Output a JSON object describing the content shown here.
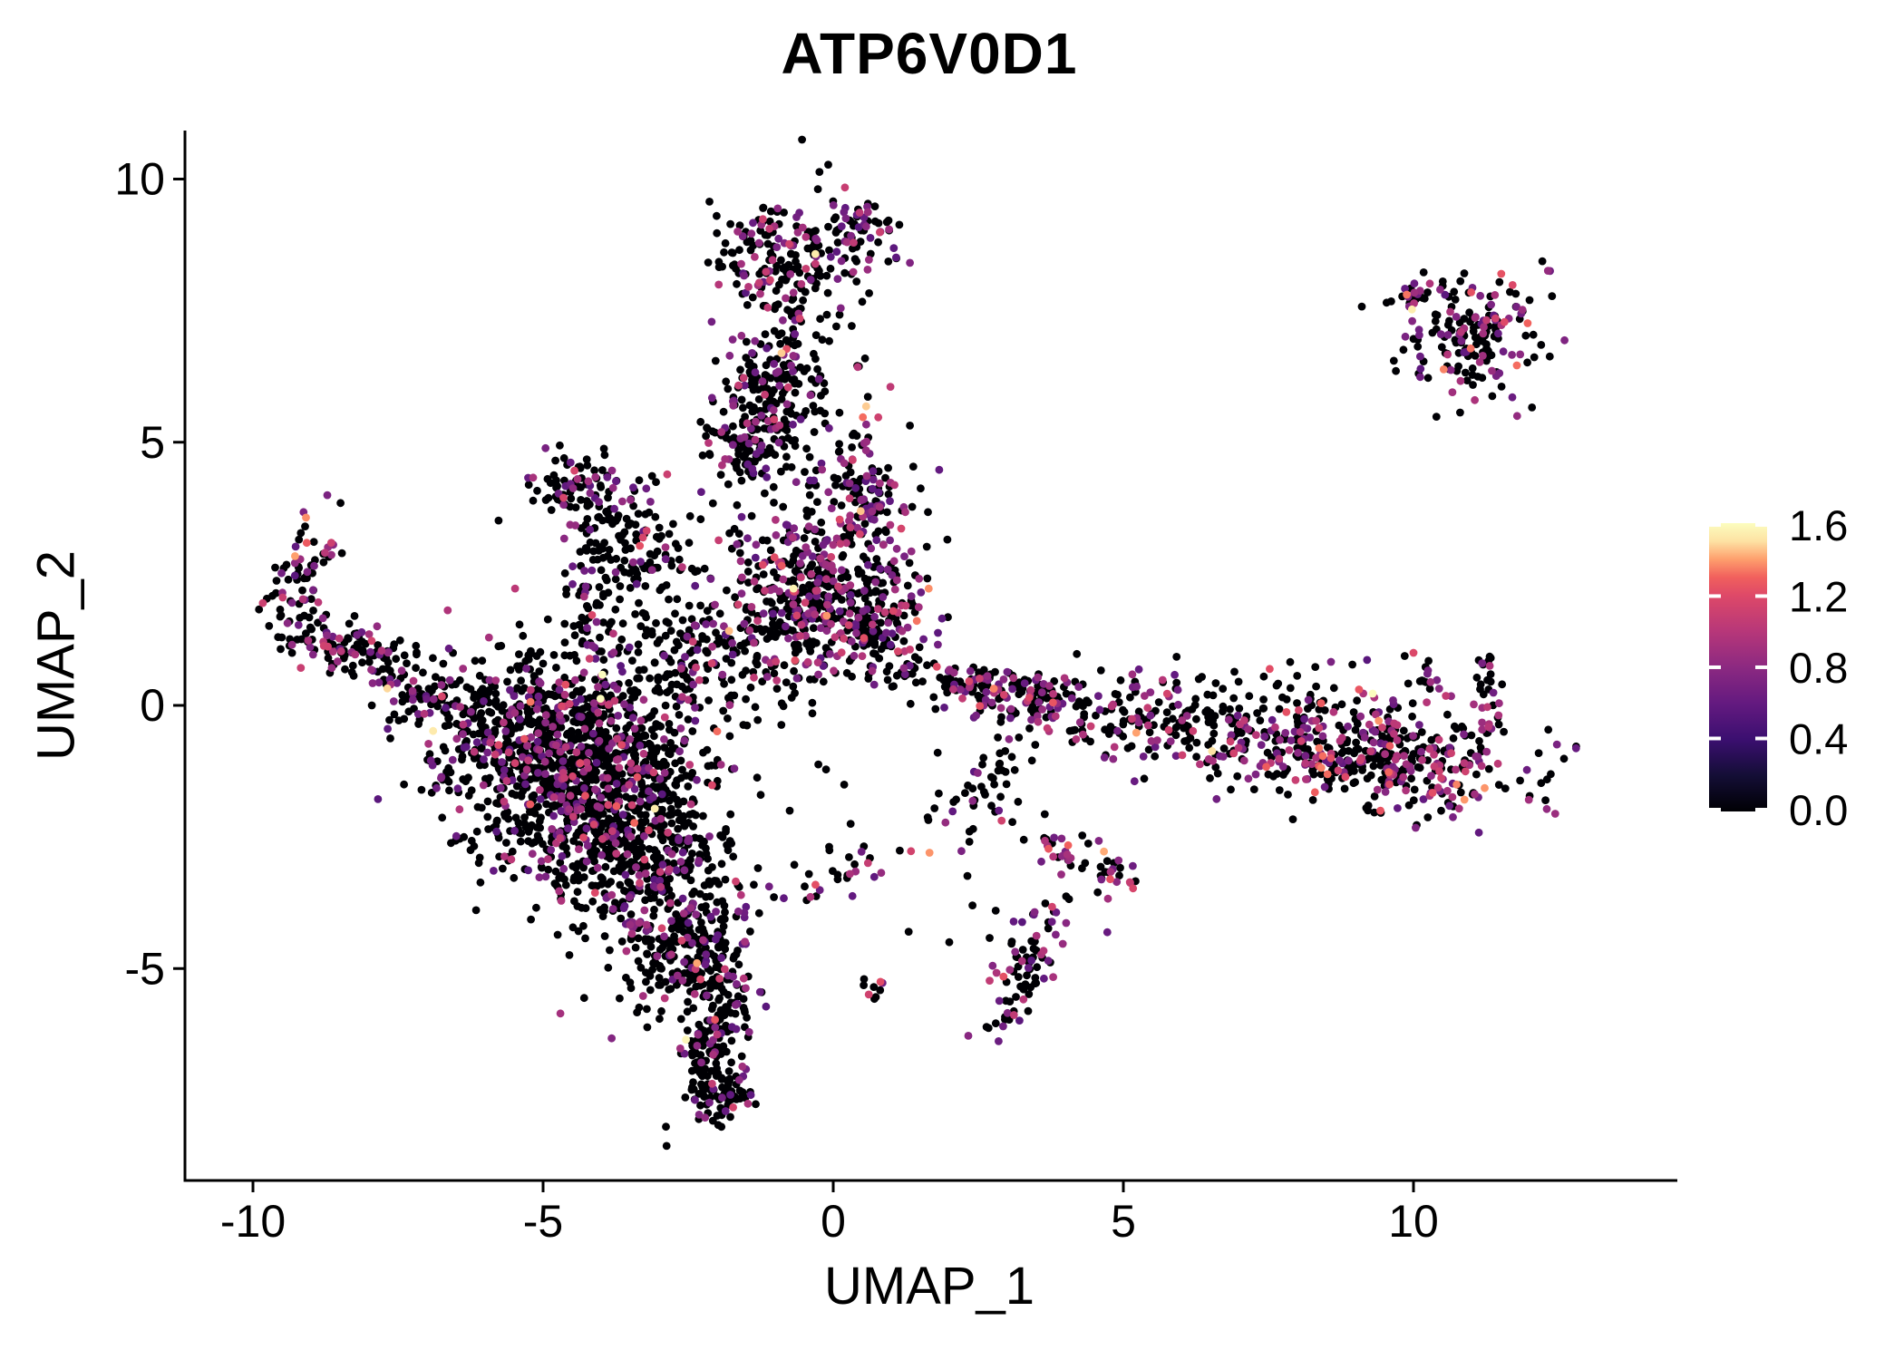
{
  "title": "ATP6V0D1",
  "axes": {
    "x_label": "UMAP_1",
    "y_label": "UMAP_2",
    "x_ticks": [
      -10,
      -5,
      0,
      5,
      10
    ],
    "y_ticks": [
      10,
      5,
      0,
      -5
    ]
  },
  "legend": {
    "ticks": [
      {
        "label": "1.6",
        "value": 1.6
      },
      {
        "label": "1.2",
        "value": 1.2
      },
      {
        "label": "0.8",
        "value": 0.8
      },
      {
        "label": "0.4",
        "value": 0.4
      },
      {
        "label": "0.0",
        "value": 0.0
      }
    ],
    "vmax": 1.62,
    "gradient": [
      {
        "o": 0.0,
        "c": "#000004"
      },
      {
        "o": 0.125,
        "c": "#140E36"
      },
      {
        "o": 0.25,
        "c": "#3B0F70"
      },
      {
        "o": 0.375,
        "c": "#641A80"
      },
      {
        "o": 0.5,
        "c": "#8C2981"
      },
      {
        "o": 0.625,
        "c": "#B73779"
      },
      {
        "o": 0.75,
        "c": "#DE4968"
      },
      {
        "o": 0.8125,
        "c": "#F1605D"
      },
      {
        "o": 0.875,
        "c": "#FE9F6D"
      },
      {
        "o": 0.9375,
        "c": "#FDE2A3"
      },
      {
        "o": 1.0,
        "c": "#FCFDBF"
      }
    ],
    "zero_color": "#000004"
  },
  "chart_data": {
    "type": "scatter",
    "title": "ATP6V0D1",
    "xlabel": "UMAP_1",
    "ylabel": "UMAP_2",
    "xlim": [
      -11.2,
      14.6
    ],
    "ylim": [
      -9.1,
      10.9
    ],
    "grid": false,
    "legend_position": "right",
    "color_scale": {
      "name": "magma",
      "domain": [
        0,
        1.62
      ],
      "legend_ticks": [
        0.0,
        0.4,
        0.8,
        1.2,
        1.6
      ]
    },
    "point_radius_px": 4.4,
    "representation": "cluster-approximation of ~5200 cells; each cluster: n points, center (cx,cy), sd (sx,sy), rotation deg, fraction expressing (pos), expression boost (vb)",
    "clusters": [
      {
        "name": "top-blob",
        "n": 140,
        "cx": -0.85,
        "cy": 8.55,
        "sx": 0.6,
        "sy": 0.42,
        "rot": -10,
        "pos": 0.3,
        "vb": 0
      },
      {
        "name": "top-blob-right",
        "n": 55,
        "cx": 0.45,
        "cy": 9.0,
        "sx": 0.32,
        "sy": 0.28,
        "rot": 0,
        "pos": 0.5,
        "vb": 0
      },
      {
        "name": "north-trail",
        "n": 260,
        "cx": -1.05,
        "cy": 6.0,
        "sx": 0.42,
        "sy": 1.35,
        "rot": -8,
        "pos": 0.28,
        "vb": 0
      },
      {
        "name": "north-trail-halo",
        "n": 70,
        "cx": -0.45,
        "cy": 6.2,
        "sx": 0.75,
        "sy": 1.5,
        "rot": 0,
        "pos": 0.12,
        "vb": 0
      },
      {
        "name": "north-trail-bulge",
        "n": 50,
        "cx": -1.6,
        "cy": 5.1,
        "sx": 0.3,
        "sy": 0.35,
        "rot": 0,
        "pos": 0.3,
        "vb": 0
      },
      {
        "name": "knob-upper",
        "n": 6,
        "cx": 0.55,
        "cy": 5.35,
        "sx": 0.18,
        "sy": 0.18,
        "rot": 0,
        "pos": 0.5,
        "vb": 0.3
      },
      {
        "name": "wing-top",
        "n": 75,
        "cx": -4.35,
        "cy": 4.25,
        "sx": 0.38,
        "sy": 0.35,
        "rot": 0,
        "pos": 0.35,
        "vb": 0
      },
      {
        "name": "wing-trail",
        "n": 120,
        "cx": -3.55,
        "cy": 3.1,
        "sx": 0.62,
        "sy": 0.5,
        "rot": -40,
        "pos": 0.25,
        "vb": 0
      },
      {
        "name": "wing-sparse",
        "n": 40,
        "cx": -3.0,
        "cy": 2.7,
        "sx": 0.9,
        "sy": 0.6,
        "rot": -30,
        "pos": 0.15,
        "vb": 0
      },
      {
        "name": "wing-stem",
        "n": 45,
        "cx": -4.25,
        "cy": 1.7,
        "sx": 0.18,
        "sy": 0.6,
        "rot": 10,
        "pos": 0.3,
        "vb": 0
      },
      {
        "name": "hook-top",
        "n": 65,
        "cx": -9.05,
        "cy": 2.55,
        "sx": 0.3,
        "sy": 0.6,
        "rot": -18,
        "pos": 0.35,
        "vb": 0
      },
      {
        "name": "hook-arm",
        "n": 130,
        "cx": -8.15,
        "cy": 1.0,
        "sx": 0.8,
        "sy": 0.3,
        "rot": -22,
        "pos": 0.3,
        "vb": 0
      },
      {
        "name": "hook-trail",
        "n": 55,
        "cx": -7.0,
        "cy": 0.1,
        "sx": 0.55,
        "sy": 0.3,
        "rot": -25,
        "pos": 0.22,
        "vb": 0
      },
      {
        "name": "mass-core-left",
        "n": 560,
        "cx": -4.85,
        "cy": -1.15,
        "sx": 0.95,
        "sy": 0.8,
        "rot": 0,
        "pos": 0.22,
        "vb": 0
      },
      {
        "name": "mass-core-right",
        "n": 480,
        "cx": -3.6,
        "cy": -2.3,
        "sx": 0.85,
        "sy": 0.95,
        "rot": 0,
        "pos": 0.22,
        "vb": 0
      },
      {
        "name": "mass-top",
        "n": 240,
        "cx": -4.4,
        "cy": -0.15,
        "sx": 1.05,
        "sy": 0.5,
        "rot": 0,
        "pos": 0.2,
        "vb": 0
      },
      {
        "name": "mass-top-left",
        "n": 90,
        "cx": -6.15,
        "cy": -0.45,
        "sx": 0.65,
        "sy": 0.55,
        "rot": 0,
        "pos": 0.22,
        "vb": 0
      },
      {
        "name": "mass-low",
        "n": 190,
        "cx": -2.9,
        "cy": -3.5,
        "sx": 0.55,
        "sy": 0.7,
        "rot": 15,
        "pos": 0.25,
        "vb": 0
      },
      {
        "name": "mass-halo",
        "n": 180,
        "cx": -4.2,
        "cy": -1.6,
        "sx": 1.6,
        "sy": 1.5,
        "rot": 0,
        "pos": 0.15,
        "vb": 0
      },
      {
        "name": "neck",
        "n": 140,
        "cx": -2.4,
        "cy": 0.9,
        "sx": 0.75,
        "sy": 0.55,
        "rot": -15,
        "pos": 0.2,
        "vb": 0
      },
      {
        "name": "center",
        "n": 400,
        "cx": -0.35,
        "cy": 1.85,
        "sx": 0.8,
        "sy": 0.7,
        "rot": 0,
        "pos": 0.36,
        "vb": 0
      },
      {
        "name": "center-right",
        "n": 90,
        "cx": 0.95,
        "cy": 1.9,
        "sx": 0.4,
        "sy": 0.45,
        "rot": 0,
        "pos": 0.4,
        "vb": 0
      },
      {
        "name": "center-knob",
        "n": 120,
        "cx": 0.55,
        "cy": 3.9,
        "sx": 0.35,
        "sy": 0.55,
        "rot": 0,
        "pos": 0.45,
        "vb": 0
      },
      {
        "name": "center-bridge",
        "n": 40,
        "cx": -0.1,
        "cy": 3.0,
        "sx": 0.5,
        "sy": 0.4,
        "rot": 0,
        "pos": 0.3,
        "vb": 0
      },
      {
        "name": "center-halo",
        "n": 60,
        "cx": -0.4,
        "cy": 1.6,
        "sx": 1.1,
        "sy": 1.0,
        "rot": 0,
        "pos": 0.2,
        "vb": 0
      },
      {
        "name": "tail-upper",
        "n": 150,
        "cx": -2.55,
        "cy": -4.9,
        "sx": 0.4,
        "sy": 0.55,
        "rot": -30,
        "pos": 0.22,
        "vb": 0
      },
      {
        "name": "tail-mid",
        "n": 150,
        "cx": -2.05,
        "cy": -6.4,
        "sx": 0.26,
        "sy": 0.75,
        "rot": -12,
        "pos": 0.22,
        "vb": 0
      },
      {
        "name": "tail-tip",
        "n": 60,
        "cx": -1.85,
        "cy": -7.3,
        "sx": 0.24,
        "sy": 0.3,
        "rot": 0,
        "pos": 0.28,
        "vb": 0
      },
      {
        "name": "tail-offshoot",
        "n": 12,
        "cx": -1.5,
        "cy": -5.2,
        "sx": 0.2,
        "sy": 0.3,
        "rot": 30,
        "pos": 0.25,
        "vb": 0
      },
      {
        "name": "chain-diagonal",
        "n": 36,
        "cx": -0.1,
        "cy": -3.3,
        "sx": 0.95,
        "sy": 0.22,
        "rot": 26,
        "pos": 0.5,
        "vb": 0
      },
      {
        "name": "band-left",
        "n": 170,
        "cx": 2.85,
        "cy": 0.3,
        "sx": 1.0,
        "sy": 0.25,
        "rot": -10,
        "pos": 0.45,
        "vb": 0.05
      },
      {
        "name": "band-mid",
        "n": 170,
        "cx": 5.6,
        "cy": -0.35,
        "sx": 1.25,
        "sy": 0.35,
        "rot": -6,
        "pos": 0.35,
        "vb": 0.05
      },
      {
        "name": "band-right",
        "n": 430,
        "cx": 9.3,
        "cy": -0.95,
        "sx": 1.35,
        "sy": 0.5,
        "rot": -7,
        "pos": 0.45,
        "vb": 0.05
      },
      {
        "name": "band-halo",
        "n": 80,
        "cx": 6.8,
        "cy": -0.1,
        "sx": 1.8,
        "sy": 0.6,
        "rot": 0,
        "pos": 0.2,
        "vb": 0
      },
      {
        "name": "riser-1",
        "n": 14,
        "cx": 10.25,
        "cy": 0.6,
        "sx": 0.15,
        "sy": 0.3,
        "rot": 0,
        "pos": 0.4,
        "vb": 0.1
      },
      {
        "name": "riser-2",
        "n": 26,
        "cx": 11.25,
        "cy": 0.1,
        "sx": 0.15,
        "sy": 0.45,
        "rot": 0,
        "pos": 0.35,
        "vb": 0.1
      },
      {
        "name": "riser-2-top",
        "n": 6,
        "cx": 11.35,
        "cy": 0.8,
        "sx": 0.12,
        "sy": 0.15,
        "rot": 0,
        "pos": 0.6,
        "vb": 0.2
      },
      {
        "name": "arm-down",
        "n": 48,
        "cx": 2.7,
        "cy": -1.5,
        "sx": 0.28,
        "sy": 0.75,
        "rot": -30,
        "pos": 0.25,
        "vb": 0
      },
      {
        "name": "arm-diagonal",
        "n": 40,
        "cx": 4.2,
        "cy": -2.85,
        "sx": 0.55,
        "sy": 0.2,
        "rot": -28,
        "pos": 0.45,
        "vb": 0.1
      },
      {
        "name": "arm-diagonal-tip",
        "n": 12,
        "cx": 4.9,
        "cy": -3.3,
        "sx": 0.2,
        "sy": 0.18,
        "rot": 0,
        "pos": 0.5,
        "vb": 0.1
      },
      {
        "name": "strand-low",
        "n": 85,
        "cx": 3.3,
        "cy": -5.1,
        "sx": 0.25,
        "sy": 0.65,
        "rot": -25,
        "pos": 0.35,
        "vb": 0
      },
      {
        "name": "blob-small",
        "n": 9,
        "cx": 0.7,
        "cy": -5.4,
        "sx": 0.16,
        "sy": 0.14,
        "rot": 0,
        "pos": 0.3,
        "vb": 0
      },
      {
        "name": "topright-streak",
        "n": 26,
        "cx": 10.15,
        "cy": 7.8,
        "sx": 0.33,
        "sy": 0.1,
        "rot": 5,
        "pos": 0.4,
        "vb": 0
      },
      {
        "name": "topright-main",
        "n": 170,
        "cx": 10.95,
        "cy": 7.0,
        "sx": 0.55,
        "sy": 0.5,
        "rot": -35,
        "pos": 0.4,
        "vb": 0
      },
      {
        "name": "topright-pair",
        "n": 3,
        "cx": 12.35,
        "cy": 8.3,
        "sx": 0.1,
        "sy": 0.08,
        "rot": 0,
        "pos": 0.67,
        "vb": 0
      }
    ],
    "singles": [
      [
        -6.9,
        0.9,
        0
      ],
      [
        -6.05,
        0.85,
        0
      ],
      [
        1.34,
        -2.77,
        1.15
      ],
      [
        1.66,
        -2.8,
        1.4
      ],
      [
        2.4,
        -3.8,
        0
      ],
      [
        2.8,
        -3.9,
        0
      ],
      [
        12.0,
        7.7,
        0
      ],
      [
        12.2,
        6.85,
        0
      ],
      [
        6.3,
        0.5,
        0
      ],
      [
        5.2,
        0.45,
        0
      ],
      [
        4.3,
        0.4,
        0
      ],
      [
        -1.25,
        -1.7,
        0
      ],
      [
        -0.75,
        -2.0,
        0
      ],
      [
        0.3,
        -2.25,
        0
      ],
      [
        1.8,
        -0.9,
        0
      ],
      [
        10.0,
        1.0,
        1.2
      ],
      [
        2.0,
        -4.5,
        0
      ],
      [
        1.3,
        -4.3,
        0
      ]
    ]
  }
}
